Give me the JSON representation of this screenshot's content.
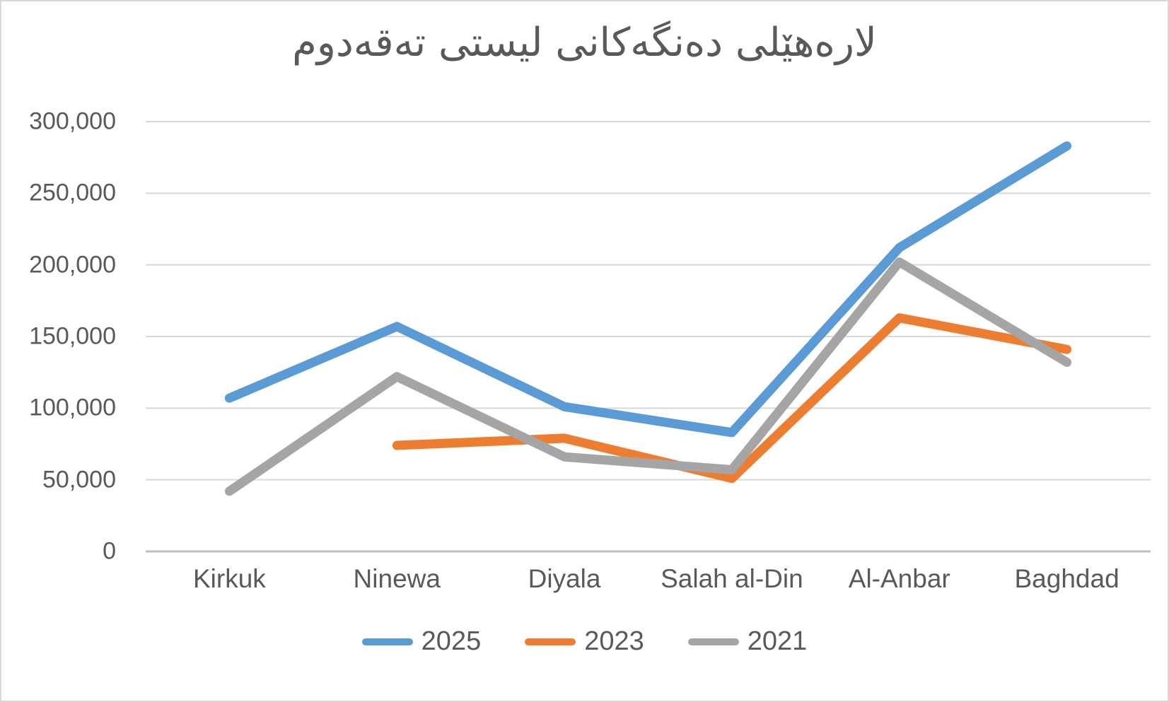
{
  "title": "لارەهێلی دەنگەکانی لیستی تەقەدوم",
  "colors": {
    "background": "#FFFFFF",
    "frame_border": "#D8D8D8",
    "gridline": "#D9D9D9",
    "axis_line": "#BFBFBF",
    "text": "#595959",
    "series_blue": "#5B9BD5",
    "series_orange": "#ED7D31",
    "series_gray": "#A5A5A5"
  },
  "chart_data": {
    "type": "line",
    "title": "لارەهێلی دەنگەکانی لیستی تەقەدوم",
    "categories": [
      "Kirkuk",
      "Ninewa",
      "Diyala",
      "Salah al-Din",
      "Al-Anbar",
      "Baghdad"
    ],
    "series": [
      {
        "name": "2025",
        "color": "#5B9BD5",
        "values": [
          107000,
          157000,
          101000,
          83000,
          212000,
          283000
        ]
      },
      {
        "name": "2023",
        "color": "#ED7D31",
        "values": [
          null,
          74000,
          79000,
          51000,
          163000,
          141000
        ]
      },
      {
        "name": "2021",
        "color": "#A5A5A5",
        "values": [
          42000,
          122000,
          66000,
          57000,
          202000,
          132000
        ]
      }
    ],
    "xlabel": "",
    "ylabel": "",
    "ylim": [
      0,
      300000
    ],
    "ytick_step": 50000,
    "ytick_labels": [
      "0",
      "50,000",
      "100,000",
      "150,000",
      "200,000",
      "250,000",
      "300,000"
    ],
    "grid": true,
    "legend_position": "bottom"
  },
  "legend": {
    "items": [
      {
        "label": "2025",
        "color": "#5B9BD5"
      },
      {
        "label": "2023",
        "color": "#ED7D31"
      },
      {
        "label": "2021",
        "color": "#A5A5A5"
      }
    ]
  }
}
